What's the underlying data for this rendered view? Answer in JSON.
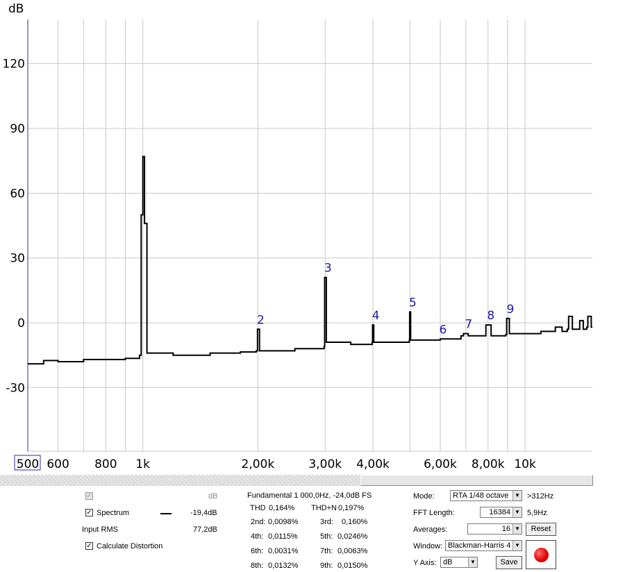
{
  "colors": {
    "spectrum": "#000000",
    "grid": "#c8c8c8",
    "harmonic_labels": "#1a1aaa",
    "left_axis": "#2a2ab0",
    "record": "#e00000"
  },
  "chart_data": {
    "type": "line",
    "ylabel": "dB",
    "ylim": [
      -60,
      140
    ],
    "y_ticks": [
      "120",
      "90",
      "60",
      "30",
      "0",
      "-30"
    ],
    "x_scale": "log",
    "xlim": [
      500,
      15000
    ],
    "x_ticks": [
      "500",
      "600",
      "800",
      "1k",
      "2,00k",
      "3,00k",
      "4,00k",
      "6,00k",
      "8,00k",
      "10k"
    ],
    "x_tick_values": [
      500,
      600,
      800,
      1000,
      2000,
      3000,
      4000,
      6000,
      8000,
      10000
    ],
    "series": [
      {
        "values_description_free": true,
        "points": [
          [
            500,
            -19
          ],
          [
            550,
            -17.5
          ],
          [
            600,
            -18
          ],
          [
            700,
            -17
          ],
          [
            800,
            -17
          ],
          [
            900,
            -16.5
          ],
          [
            980,
            -15
          ],
          [
            990,
            50
          ],
          [
            1000,
            77
          ],
          [
            1010,
            46
          ],
          [
            1025,
            -14
          ],
          [
            1200,
            -15
          ],
          [
            1500,
            -14
          ],
          [
            1800,
            -13.5
          ],
          [
            1980,
            -13
          ],
          [
            1995,
            -3
          ],
          [
            2005,
            -3
          ],
          [
            2020,
            -13
          ],
          [
            2500,
            -12
          ],
          [
            2980,
            -11
          ],
          [
            2990,
            21
          ],
          [
            3010,
            21
          ],
          [
            3020,
            -9
          ],
          [
            3500,
            -10
          ],
          [
            3980,
            -9
          ],
          [
            3990,
            -1
          ],
          [
            4010,
            -1
          ],
          [
            4020,
            -9
          ],
          [
            4500,
            -9
          ],
          [
            4980,
            -8
          ],
          [
            4990,
            5
          ],
          [
            5010,
            5
          ],
          [
            5020,
            -8
          ],
          [
            5500,
            -8
          ],
          [
            6000,
            -7.5
          ],
          [
            6800,
            -6
          ],
          [
            6900,
            -5
          ],
          [
            7000,
            -5
          ],
          [
            7100,
            -6
          ],
          [
            7800,
            -6
          ],
          [
            7900,
            -1
          ],
          [
            8050,
            -1
          ],
          [
            8150,
            -6
          ],
          [
            8900,
            -5.5
          ],
          [
            8950,
            2
          ],
          [
            9050,
            2
          ],
          [
            9100,
            -5
          ],
          [
            10000,
            -5
          ],
          [
            11000,
            -4
          ],
          [
            12000,
            -2
          ],
          [
            12500,
            -4
          ],
          [
            12900,
            -3
          ],
          [
            13000,
            3
          ],
          [
            13200,
            3
          ],
          [
            13300,
            -3
          ],
          [
            13800,
            -3
          ],
          [
            13900,
            1
          ],
          [
            14100,
            1
          ],
          [
            14200,
            -3
          ],
          [
            14500,
            -2
          ],
          [
            14600,
            3
          ],
          [
            14800,
            3
          ],
          [
            14900,
            -2
          ],
          [
            15000,
            -2
          ]
        ]
      }
    ],
    "harmonic_markers": [
      {
        "label": "2",
        "freq": 2000,
        "db": -3
      },
      {
        "label": "3",
        "freq": 3000,
        "db": 21
      },
      {
        "label": "4",
        "freq": 4000,
        "db": -1
      },
      {
        "label": "5",
        "freq": 5000,
        "db": 5
      },
      {
        "label": "6",
        "freq": 6000,
        "db": -7.5
      },
      {
        "label": "7",
        "freq": 7000,
        "db": -5
      },
      {
        "label": "8",
        "freq": 8000,
        "db": -1
      },
      {
        "label": "9",
        "freq": 9000,
        "db": 2
      }
    ]
  },
  "left_panel": {
    "top_unit": "dB",
    "spectrum_label": "Spectrum",
    "spectrum_value": "-19,4dB",
    "input_rms_label": "Input RMS",
    "input_rms_value": "77,2dB",
    "calc_distortion_label": "Calculate Distortion"
  },
  "distortion": {
    "fundamental": "Fundamental 1 000,0Hz, -24,0dB FS",
    "thd_label": "THD",
    "thd_value": "0,164%",
    "thdn_label": "THD+N",
    "thdn_value": "0,197%",
    "h2_label": "2nd:",
    "h2_value": "0,0098%",
    "h3_label": "3rd:",
    "h3_value": "0,160%",
    "h4_label": "4th:",
    "h4_value": "0,0115%",
    "h5_label": "5th:",
    "h5_value": "0,0246%",
    "h6_label": "6th:",
    "h6_value": "0,0031%",
    "h7_label": "7th:",
    "h7_value": "0,0063%",
    "h8_label": "8th:",
    "h8_value": "0,0132%",
    "h9_label": "9th:",
    "h9_value": "0,0150%"
  },
  "settings": {
    "mode_label": "Mode:",
    "mode_value": "RTA 1/48 octave",
    "mode_note": ">312Hz",
    "fft_label": "FFT Length:",
    "fft_value": "16384",
    "fft_note": "5,9Hz",
    "averages_label": "Averages:",
    "averages_value": "16",
    "reset_label": "Reset",
    "window_label": "Window:",
    "window_value": "Blackman-Harris 4",
    "yaxis_label": "Y Axis:",
    "yaxis_value": "dB",
    "save_label": "Save"
  }
}
